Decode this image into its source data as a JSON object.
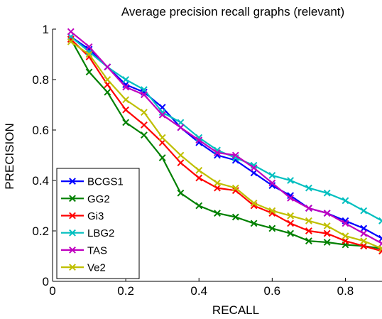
{
  "chart_data": {
    "type": "line",
    "title": "Average precision recall graphs (relevant)",
    "xlabel": "RECALL",
    "ylabel": "PRECISION",
    "xlim": [
      0,
      0.9
    ],
    "ylim": [
      0,
      1
    ],
    "xticks": [
      0,
      0.2,
      0.4,
      0.6,
      0.8
    ],
    "xtick_labels": [
      "0",
      "0.2",
      "0.4",
      "0.6",
      "0.8"
    ],
    "yticks": [
      0,
      0.2,
      0.4,
      0.6,
      0.8,
      1
    ],
    "ytick_labels": [
      "0",
      "0.2",
      "0.4",
      "0.6",
      "0.8",
      "1"
    ],
    "grid": false,
    "legend_position": "bottom-left",
    "marker": "x",
    "x": [
      0.05,
      0.1,
      0.15,
      0.2,
      0.25,
      0.3,
      0.35,
      0.4,
      0.45,
      0.5,
      0.55,
      0.6,
      0.65,
      0.7,
      0.75,
      0.8,
      0.85,
      0.9
    ],
    "series": [
      {
        "name": "BCGS1",
        "color": "#0000ff",
        "values": [
          0.97,
          0.92,
          0.85,
          0.78,
          0.75,
          0.69,
          0.61,
          0.55,
          0.5,
          0.48,
          0.43,
          0.38,
          0.34,
          0.29,
          0.27,
          0.24,
          0.21,
          0.17
        ]
      },
      {
        "name": "GG2",
        "color": "#008000",
        "values": [
          0.96,
          0.83,
          0.75,
          0.63,
          0.58,
          0.49,
          0.35,
          0.3,
          0.27,
          0.255,
          0.23,
          0.21,
          0.19,
          0.16,
          0.155,
          0.145,
          0.14,
          0.13
        ]
      },
      {
        "name": "Gi3",
        "color": "#ff0000",
        "values": [
          0.96,
          0.89,
          0.78,
          0.68,
          0.62,
          0.55,
          0.47,
          0.41,
          0.37,
          0.36,
          0.3,
          0.27,
          0.23,
          0.2,
          0.19,
          0.16,
          0.14,
          0.12
        ]
      },
      {
        "name": "LBG2",
        "color": "#00bfbf",
        "values": [
          0.97,
          0.91,
          0.85,
          0.8,
          0.76,
          0.67,
          0.63,
          0.57,
          0.52,
          0.49,
          0.46,
          0.42,
          0.4,
          0.37,
          0.35,
          0.32,
          0.28,
          0.24
        ]
      },
      {
        "name": "TAS",
        "color": "#bf00bf",
        "values": [
          0.99,
          0.93,
          0.85,
          0.77,
          0.74,
          0.66,
          0.61,
          0.56,
          0.51,
          0.5,
          0.45,
          0.39,
          0.33,
          0.29,
          0.27,
          0.23,
          0.19,
          0.15
        ]
      },
      {
        "name": "Ve2",
        "color": "#bfbf00",
        "values": [
          0.95,
          0.9,
          0.8,
          0.72,
          0.67,
          0.57,
          0.5,
          0.44,
          0.39,
          0.37,
          0.31,
          0.28,
          0.26,
          0.24,
          0.22,
          0.18,
          0.16,
          0.13
        ]
      }
    ]
  }
}
